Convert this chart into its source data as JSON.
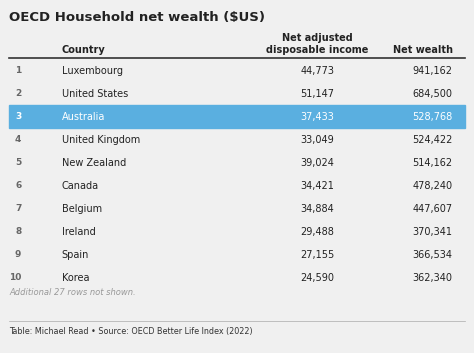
{
  "title": "OECD Household net wealth ($US)",
  "col_country": "Country",
  "col_income": "Net adjusted\ndisposable income",
  "col_wealth": "Net wealth",
  "rows": [
    {
      "rank": "1",
      "country": "Luxembourg",
      "income": "44,773",
      "wealth": "941,162",
      "highlight": false
    },
    {
      "rank": "2",
      "country": "United States",
      "income": "51,147",
      "wealth": "684,500",
      "highlight": false
    },
    {
      "rank": "3",
      "country": "Australia",
      "income": "37,433",
      "wealth": "528,768",
      "highlight": true
    },
    {
      "rank": "4",
      "country": "United Kingdom",
      "income": "33,049",
      "wealth": "524,422",
      "highlight": false
    },
    {
      "rank": "5",
      "country": "New Zealand",
      "income": "39,024",
      "wealth": "514,162",
      "highlight": false
    },
    {
      "rank": "6",
      "country": "Canada",
      "income": "34,421",
      "wealth": "478,240",
      "highlight": false
    },
    {
      "rank": "7",
      "country": "Belgium",
      "income": "34,884",
      "wealth": "447,607",
      "highlight": false
    },
    {
      "rank": "8",
      "country": "Ireland",
      "income": "29,488",
      "wealth": "370,341",
      "highlight": false
    },
    {
      "rank": "9",
      "country": "Spain",
      "income": "27,155",
      "wealth": "366,534",
      "highlight": false
    },
    {
      "rank": "10",
      "country": "Korea",
      "income": "24,590",
      "wealth": "362,340",
      "highlight": false
    }
  ],
  "footer_note": "Additional 27 rows not shown.",
  "footer_source": "Table: Michael Read • Source: OECD Better Life Index (2022)",
  "bg_color": "#f0f0f0",
  "highlight_color": "#5aafe0",
  "highlight_text_color": "#ffffff",
  "header_line_color": "#333333",
  "normal_text_color": "#222222",
  "rank_text_color": "#666666",
  "footer_note_color": "#999999",
  "footer_source_color": "#333333"
}
